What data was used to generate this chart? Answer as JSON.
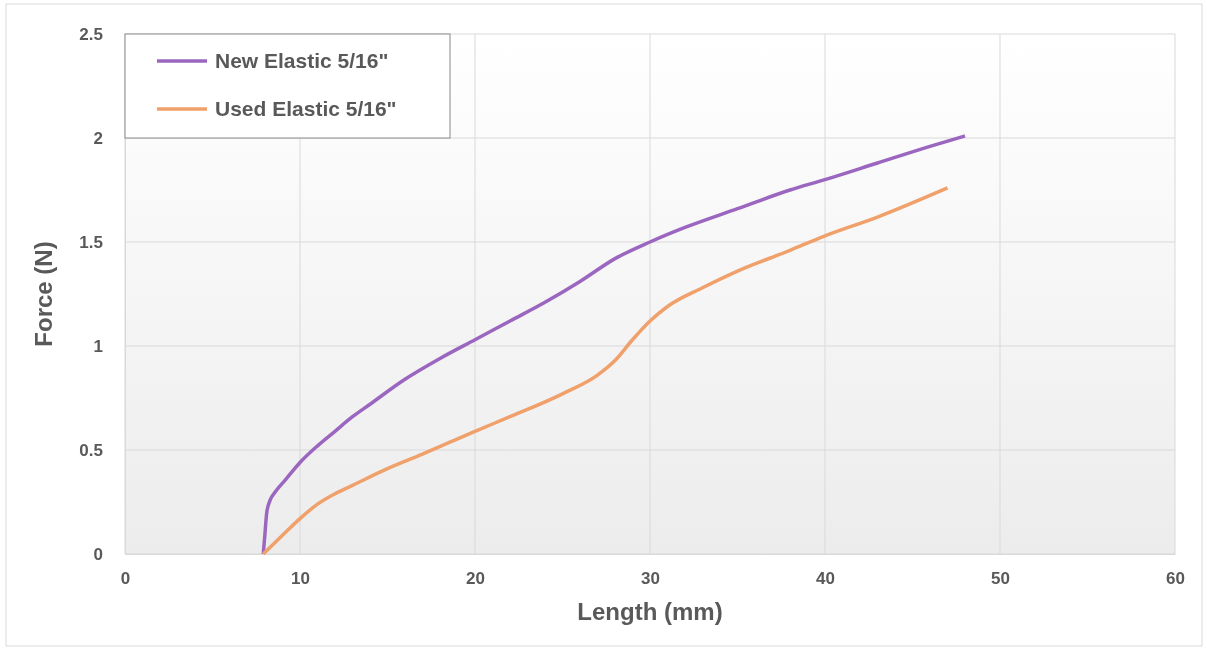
{
  "chart_data": {
    "type": "line",
    "xlabel": "Length (mm)",
    "ylabel": "Force (N)",
    "xlim": [
      0,
      60
    ],
    "xticks": [
      0,
      10,
      20,
      30,
      40,
      50,
      60
    ],
    "ylim": [
      0,
      2.5
    ],
    "yticks": [
      0,
      0.5,
      1,
      1.5,
      2,
      2.5
    ],
    "grid": true,
    "legend": "top left",
    "marker": "none",
    "line_style": "solid",
    "series": [
      {
        "name": "New Elastic 5/16\"",
        "color": "#9b66c0",
        "x": [
          7.9,
          8.0,
          8.1,
          8.3,
          8.6,
          9.2,
          10,
          11,
          12,
          13,
          14,
          16,
          18,
          20,
          22,
          24,
          26,
          28,
          30,
          32,
          35,
          38,
          40,
          43,
          46,
          48
        ],
        "values": [
          0,
          0.1,
          0.2,
          0.26,
          0.3,
          0.36,
          0.44,
          0.52,
          0.59,
          0.66,
          0.72,
          0.84,
          0.94,
          1.03,
          1.12,
          1.21,
          1.31,
          1.42,
          1.5,
          1.57,
          1.66,
          1.75,
          1.8,
          1.88,
          1.96,
          2.01
        ]
      },
      {
        "name": "Used Elastic 5/16\"",
        "color": "#f0a06a",
        "x": [
          7.9,
          9,
          10,
          11,
          12,
          13,
          15,
          17,
          20,
          22,
          25,
          27,
          28,
          29,
          30,
          31,
          33,
          35,
          38,
          40,
          43,
          47
        ],
        "values": [
          0,
          0.09,
          0.17,
          0.24,
          0.29,
          0.33,
          0.41,
          0.48,
          0.59,
          0.66,
          0.77,
          0.86,
          0.93,
          1.03,
          1.12,
          1.19,
          1.28,
          1.36,
          1.46,
          1.53,
          1.62,
          1.76
        ]
      }
    ]
  }
}
